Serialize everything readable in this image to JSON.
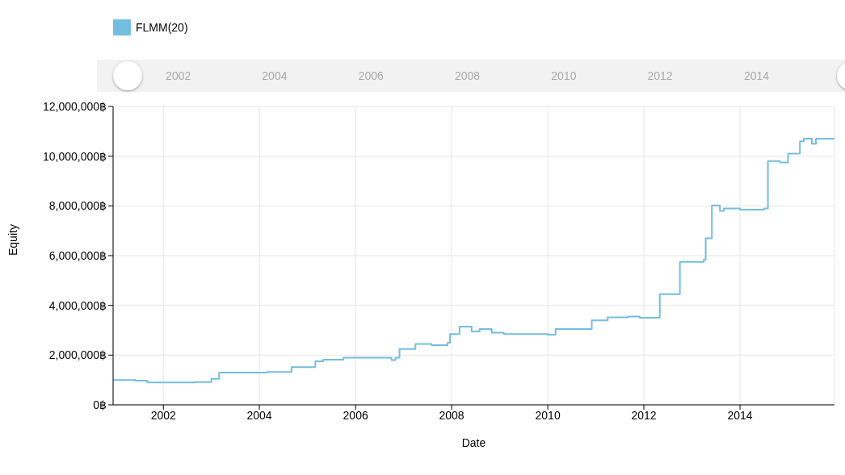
{
  "chart_data": {
    "type": "step",
    "xlabel": "Date",
    "ylabel": "Equity",
    "legend": "top left",
    "grid": true,
    "xlim": [
      "2000-12-15",
      "2015-12-20"
    ],
    "xticks": [
      "2002",
      "2004",
      "2006",
      "2008",
      "2010",
      "2012",
      "2014"
    ],
    "x2lim": [
      "2000-08-25",
      "2015-08-15"
    ],
    "x2ticks": [
      "2002",
      "2004",
      "2006",
      "2008",
      "2010",
      "2012",
      "2014"
    ],
    "ylim": [
      0,
      12000000
    ],
    "yticks": [
      {
        "value": 0,
        "label": "0฿"
      },
      {
        "value": 2000000,
        "label": "2,000,000฿"
      },
      {
        "value": 4000000,
        "label": "4,000,000฿"
      },
      {
        "value": 6000000,
        "label": "6,000,000฿"
      },
      {
        "value": 8000000,
        "label": "8,000,000฿"
      },
      {
        "value": 10000000,
        "label": "10,000,000฿"
      },
      {
        "value": 12000000,
        "label": "12,000,000฿"
      }
    ],
    "series": [
      {
        "name": "FLMM(20)",
        "color": "#74bde0",
        "x": [
          "2000-12-15",
          "2001-06",
          "2001-09",
          "2002-09",
          "2003-01",
          "2003-03",
          "2004-03",
          "2004-09",
          "2005-03",
          "2005-05",
          "2005-10",
          "2006-10",
          "2006-11",
          "2006-12",
          "2007-04",
          "2007-08",
          "2007-12",
          "2007-12-20",
          "2008-03",
          "2008-06",
          "2008-08",
          "2008-11",
          "2009-02",
          "2010-01",
          "2010-03",
          "2010-12",
          "2011-04",
          "2011-09",
          "2011-12",
          "2012-05",
          "2012-10",
          "2013-04",
          "2013-04-15",
          "2013-06",
          "2013-08",
          "2013-09",
          "2014-01",
          "2014-07",
          "2014-08",
          "2014-11",
          "2015-01",
          "2015-04",
          "2015-05",
          "2015-07",
          "2015-08",
          "2015-12-20"
        ],
        "values": [
          1000000,
          970000,
          900000,
          920000,
          1050000,
          1300000,
          1320000,
          1520000,
          1750000,
          1820000,
          1900000,
          1800000,
          1900000,
          2250000,
          2450000,
          2400000,
          2500000,
          2850000,
          3150000,
          2950000,
          3050000,
          2900000,
          2850000,
          2820000,
          3050000,
          3400000,
          3520000,
          3550000,
          3500000,
          4450000,
          5750000,
          5850000,
          6700000,
          8020000,
          7800000,
          7900000,
          7850000,
          7900000,
          9800000,
          9750000,
          10100000,
          10600000,
          10700000,
          10500000,
          10700000,
          10750000
        ]
      }
    ]
  }
}
